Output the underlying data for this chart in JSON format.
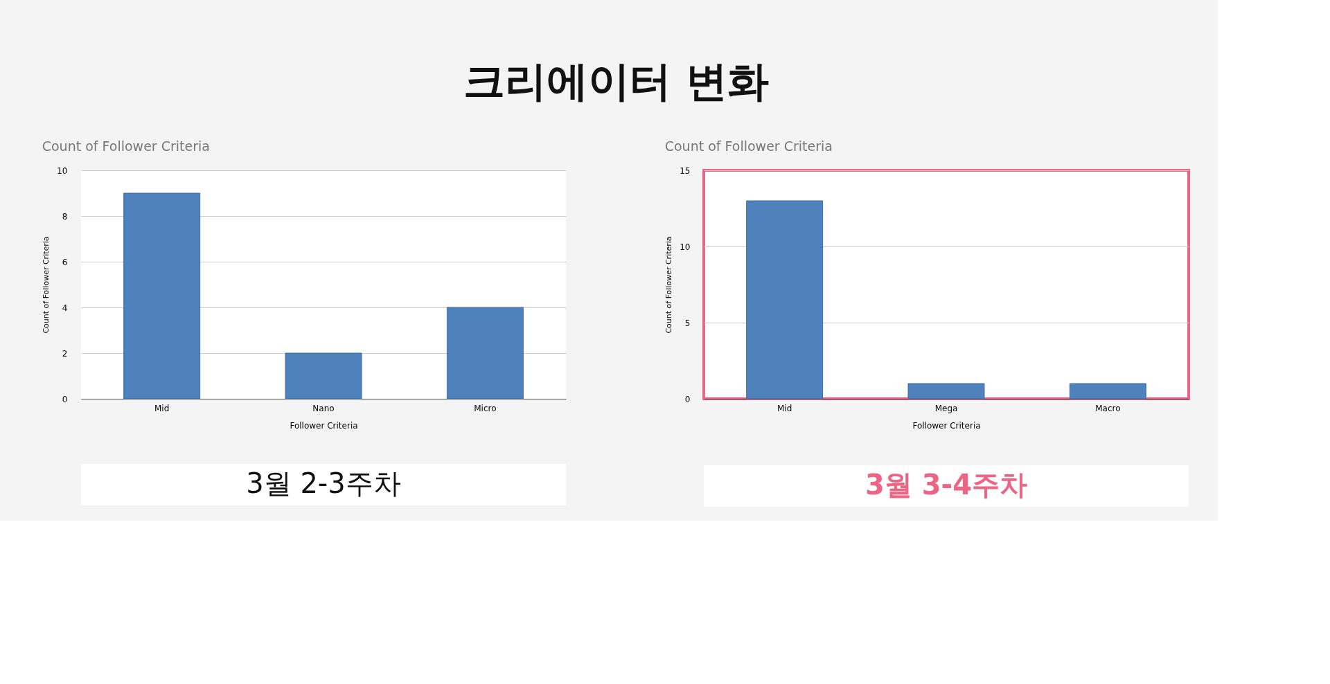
{
  "chart_data": [
    {
      "type": "bar",
      "title": "Count of Follower Criteria",
      "xlabel": "Follower Criteria",
      "ylabel": "Count of Follower Criteria",
      "categories": [
        "Mid",
        "Nano",
        "Micro"
      ],
      "values": [
        9,
        2,
        4
      ],
      "color": "#4f81bd",
      "ylim": [
        0,
        10
      ],
      "yticks": [
        0,
        2,
        4,
        6,
        8,
        10
      ],
      "grid": "y",
      "annotations": [
        "크리에이터 변화",
        "3월 2-3주차"
      ]
    },
    {
      "type": "bar",
      "title": "Count of Follower Criteria",
      "xlabel": "Follower Criteria",
      "ylabel": "Count of Follower Criteria",
      "categories": [
        "Mid",
        "Mega",
        "Macro"
      ],
      "values": [
        13,
        1,
        1
      ],
      "color": "#4f81bd",
      "ylim": [
        0,
        15
      ],
      "yticks": [
        0,
        5,
        10,
        15
      ],
      "grid": "y",
      "annotations": [
        "3월 3-4주차"
      ]
    }
  ]
}
